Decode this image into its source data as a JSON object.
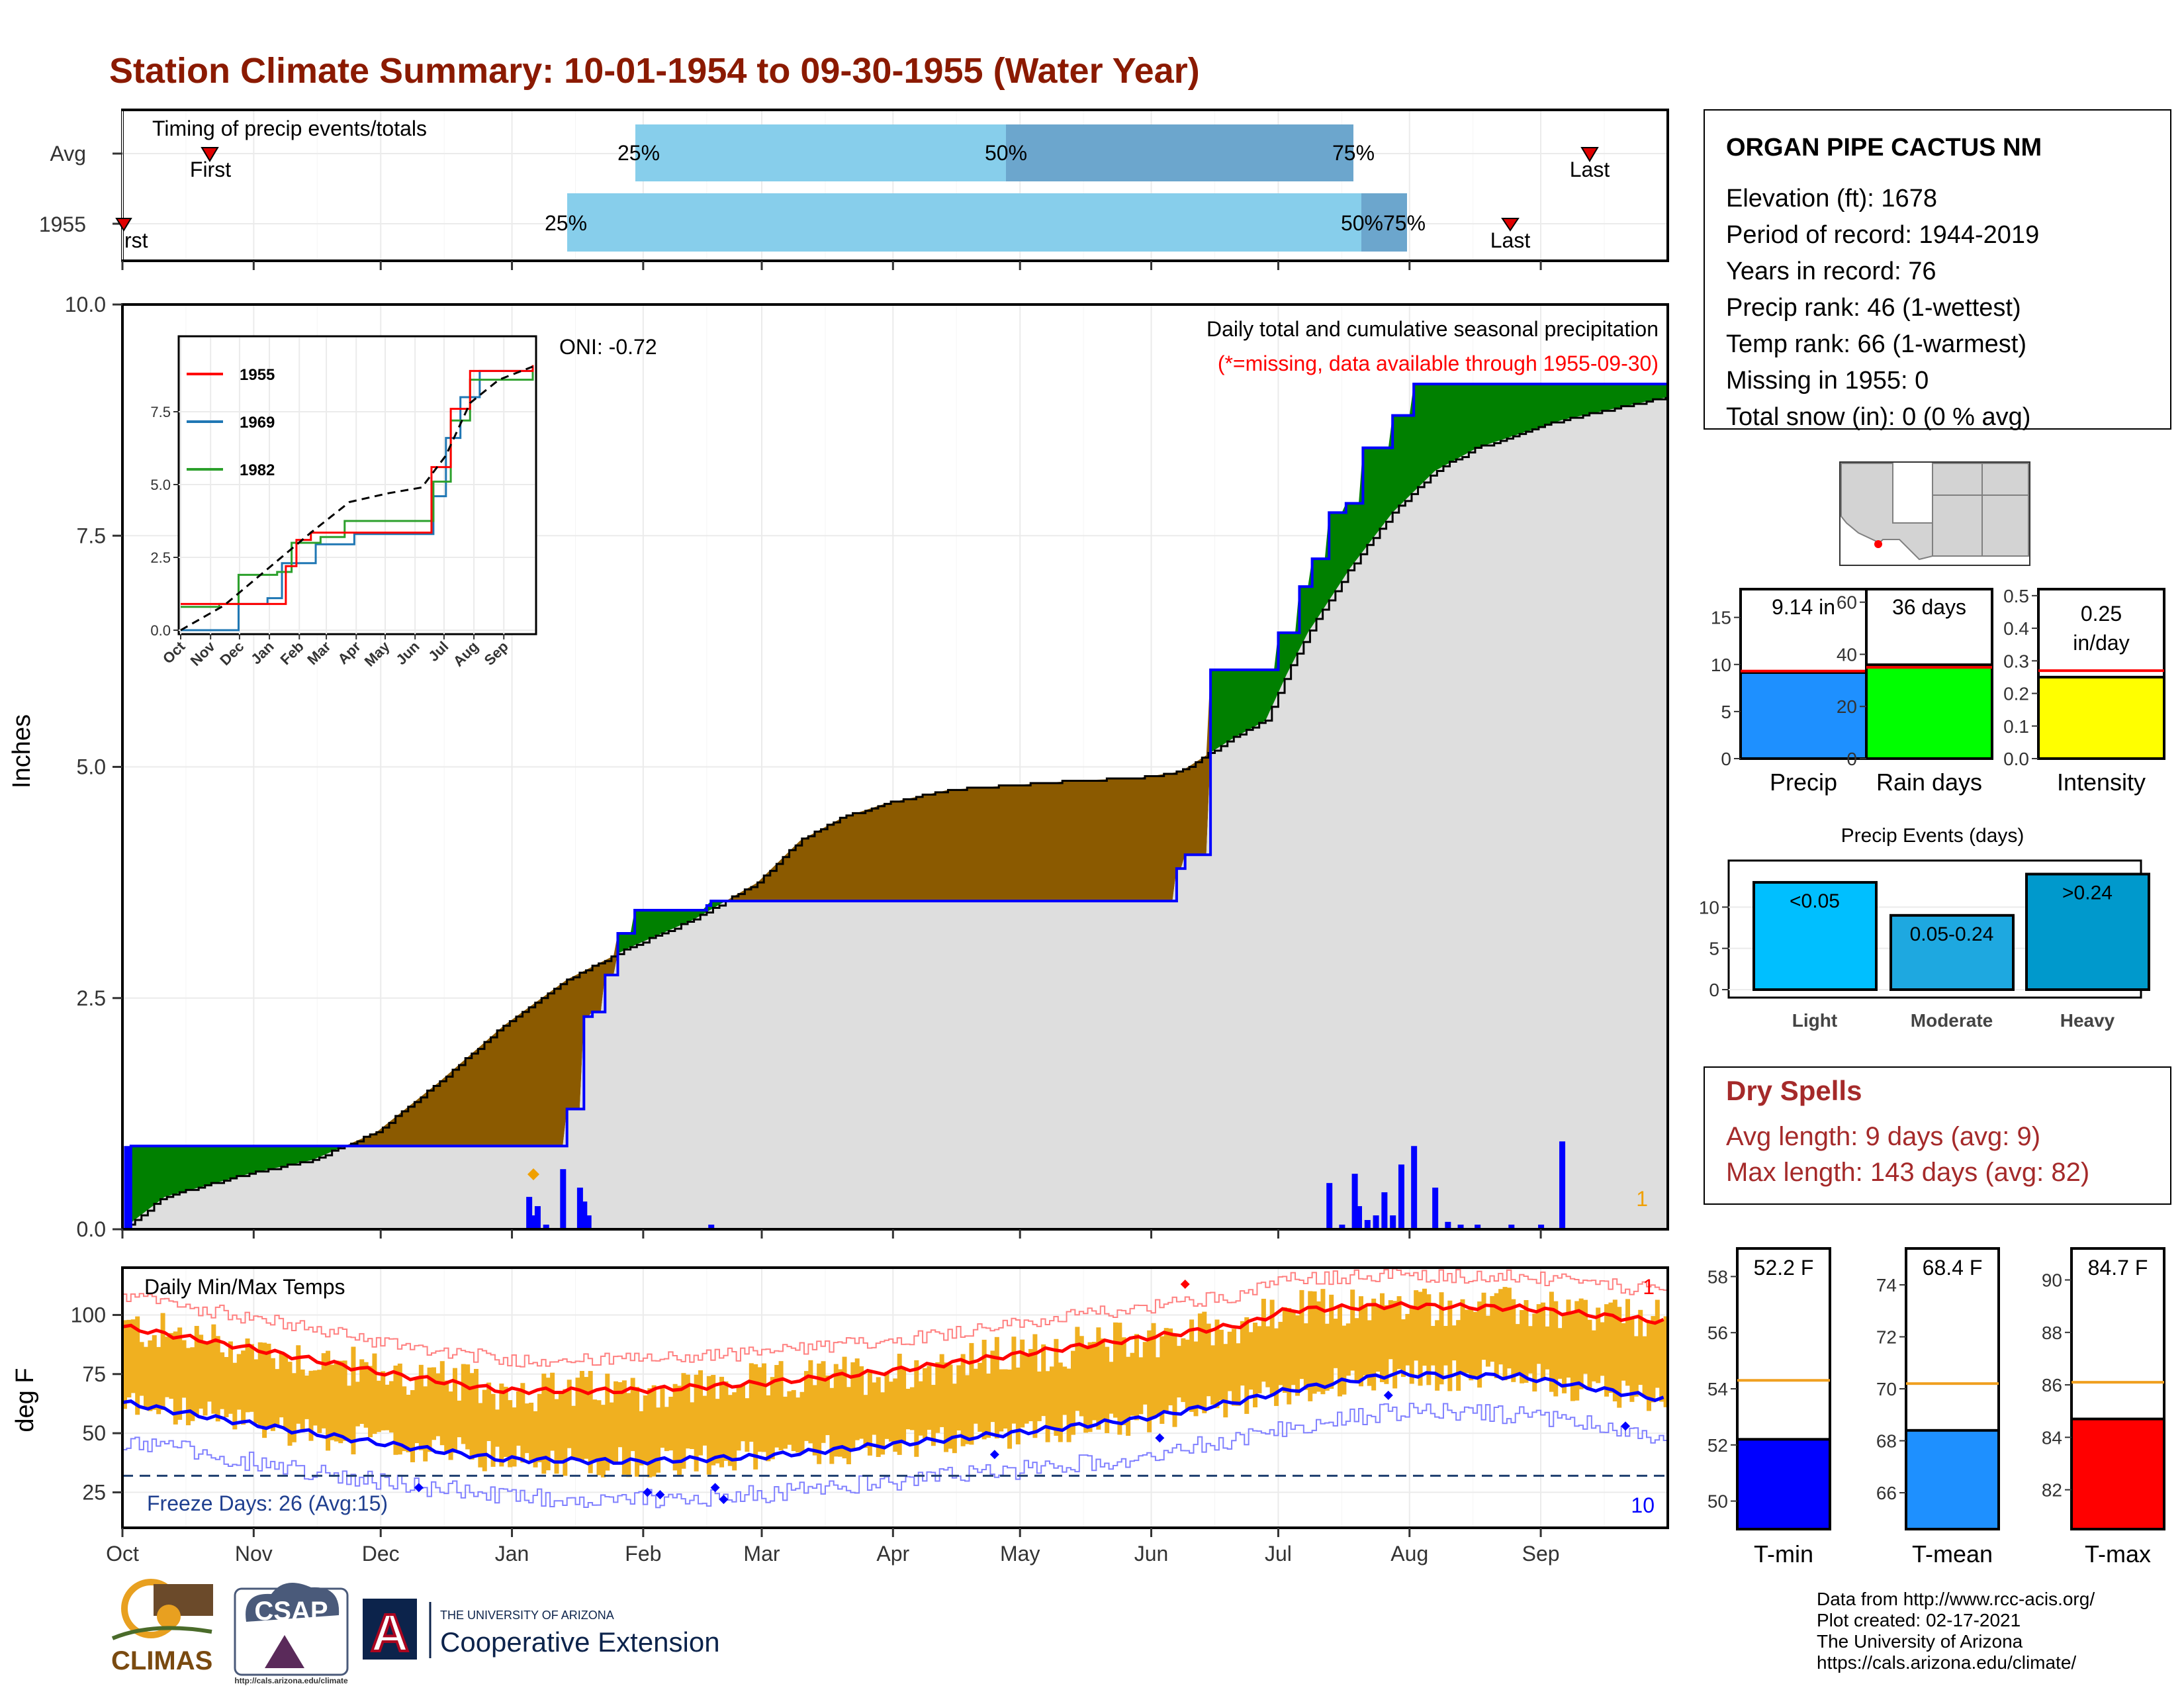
{
  "title": "Station Climate Summary: 10-01-1954 to 09-30-1955 (Water Year)",
  "colors": {
    "title": "#8B1A00",
    "dry": "#A52A2A",
    "red": "#FF0000",
    "blue": "#0000FF",
    "green": "#008000",
    "brown": "#8B5A00",
    "light_blue": "#87CEEB",
    "steel_blue": "#6CA6CD",
    "orange": "#F0B020"
  },
  "months": [
    "Oct",
    "Nov",
    "Dec",
    "Jan",
    "Feb",
    "Mar",
    "Apr",
    "May",
    "Jun",
    "Jul",
    "Aug",
    "Sep"
  ],
  "chart_data": [
    {
      "type": "bar",
      "name": "timing",
      "title": "Timing of precip events/totals",
      "rows": [
        {
          "label": "Avg",
          "first": "Nov 11",
          "p25": "Jan 16",
          "p50": "Apr 14",
          "p75": "Jul 14",
          "last": "Sep 11"
        },
        {
          "label": "1955",
          "first": "Oct 01",
          "p25": "Jan 04",
          "p50": "Jul 20",
          "p75": "Jul 31",
          "last": "Aug 25"
        }
      ],
      "labels": {
        "first": "First",
        "last": "Last",
        "first_1955": "rst",
        "p25": "25%",
        "p50": "50%",
        "p75": "75%",
        "p50_75": "50%75%"
      }
    },
    {
      "type": "area",
      "name": "precipitation",
      "ylabel": "Inches",
      "ylim": [
        0,
        10
      ],
      "yticks": [
        0.0,
        2.5,
        5.0,
        7.5,
        10.0
      ],
      "ytick_labels": [
        "0.0",
        "2.5",
        "5.0",
        "7.5",
        "10.0"
      ],
      "annotation_title": "Daily total and cumulative seasonal precipitation",
      "annotation_missing": "(*=missing, data available through 1955-09-30)",
      "oni": "ONI: -0.72",
      "count_label": "1",
      "cumulative_1955": [
        [
          0,
          0
        ],
        [
          2,
          0.9
        ],
        [
          96,
          0.9
        ],
        [
          97,
          0.9
        ],
        [
          104,
          0.9
        ],
        [
          105,
          1.3
        ],
        [
          108,
          1.3
        ],
        [
          109,
          2.3
        ],
        [
          110,
          2.3
        ],
        [
          111,
          2.35
        ],
        [
          113,
          2.35
        ],
        [
          114,
          2.75
        ],
        [
          116,
          2.75
        ],
        [
          117,
          3.2
        ],
        [
          121,
          3.45
        ],
        [
          133,
          3.45
        ],
        [
          134,
          3.45
        ],
        [
          138,
          3.5
        ],
        [
          139,
          3.55
        ],
        [
          140,
          3.55
        ],
        [
          248,
          3.55
        ],
        [
          249,
          3.9
        ],
        [
          251,
          4.05
        ],
        [
          256,
          4.05
        ],
        [
          257,
          6.05
        ],
        [
          273,
          6.45
        ],
        [
          278,
          6.95
        ],
        [
          281,
          7.25
        ],
        [
          285,
          7.75
        ],
        [
          289,
          7.85
        ],
        [
          291,
          7.85
        ],
        [
          293,
          8.45
        ],
        [
          298,
          8.45
        ],
        [
          300,
          8.8
        ],
        [
          305,
          9.14
        ],
        [
          365,
          9.14
        ]
      ],
      "cumulative_avg": [
        [
          0,
          0
        ],
        [
          10,
          0.35
        ],
        [
          30,
          0.6
        ],
        [
          45,
          0.75
        ],
        [
          60,
          1.05
        ],
        [
          75,
          1.6
        ],
        [
          90,
          2.2
        ],
        [
          105,
          2.7
        ],
        [
          120,
          3.05
        ],
        [
          135,
          3.35
        ],
        [
          150,
          3.75
        ],
        [
          160,
          4.2
        ],
        [
          170,
          4.45
        ],
        [
          180,
          4.6
        ],
        [
          195,
          4.75
        ],
        [
          210,
          4.8
        ],
        [
          225,
          4.85
        ],
        [
          240,
          4.88
        ],
        [
          250,
          4.95
        ],
        [
          262,
          5.3
        ],
        [
          270,
          5.5
        ],
        [
          275,
          6.0
        ],
        [
          280,
          6.45
        ],
        [
          290,
          7.15
        ],
        [
          300,
          7.75
        ],
        [
          310,
          8.2
        ],
        [
          320,
          8.45
        ],
        [
          330,
          8.6
        ],
        [
          340,
          8.75
        ],
        [
          350,
          8.85
        ],
        [
          365,
          9.0
        ]
      ],
      "daily_bars": [
        [
          1,
          0.9
        ],
        [
          96,
          0.35
        ],
        [
          97,
          0.15
        ],
        [
          98,
          0.25
        ],
        [
          100,
          0.05
        ],
        [
          104,
          0.65
        ],
        [
          108,
          0.45
        ],
        [
          109,
          0.3
        ],
        [
          110,
          0.15
        ],
        [
          139,
          0.05
        ],
        [
          285,
          0.5
        ],
        [
          288,
          0.05
        ],
        [
          291,
          0.6
        ],
        [
          292,
          0.25
        ],
        [
          294,
          0.1
        ],
        [
          296,
          0.15
        ],
        [
          298,
          0.4
        ],
        [
          300,
          0.15
        ],
        [
          302,
          0.7
        ],
        [
          305,
          0.9
        ],
        [
          310,
          0.45
        ],
        [
          313,
          0.08
        ],
        [
          316,
          0.05
        ],
        [
          320,
          0.05
        ],
        [
          328,
          0.05
        ],
        [
          335,
          0.05
        ],
        [
          340,
          0.95
        ]
      ],
      "inset": {
        "type": "line",
        "yticks": [
          0.0,
          2.5,
          5.0,
          7.5
        ],
        "ytick_labels": [
          "0.0",
          "2.5",
          "5.0",
          "7.5"
        ],
        "series": [
          {
            "name": "1955",
            "color": "#FF0000"
          },
          {
            "name": "1969",
            "color": "#1F77B4"
          },
          {
            "name": "1982",
            "color": "#2CA02C"
          }
        ]
      }
    },
    {
      "type": "bar",
      "name": "temperature",
      "title": "Daily Min/Max Temps",
      "ylabel": "deg F",
      "ylim": [
        10,
        120
      ],
      "yticks": [
        25,
        50,
        75,
        100
      ],
      "ytick_labels": [
        "25",
        "50",
        "75",
        "100"
      ],
      "freeze_label": "Freeze Days: 26 (Avg:15)",
      "freeze_line": 32,
      "count_top": "1",
      "count_bottom": "10",
      "avg_max": [
        [
          0,
          95
        ],
        [
          30,
          86
        ],
        [
          60,
          76
        ],
        [
          90,
          68
        ],
        [
          120,
          68
        ],
        [
          150,
          71
        ],
        [
          180,
          76
        ],
        [
          210,
          83
        ],
        [
          240,
          90
        ],
        [
          265,
          96
        ],
        [
          275,
          102
        ],
        [
          300,
          104
        ],
        [
          330,
          103
        ],
        [
          365,
          97
        ]
      ],
      "avg_min": [
        [
          0,
          63
        ],
        [
          30,
          54
        ],
        [
          60,
          46
        ],
        [
          90,
          39
        ],
        [
          120,
          38
        ],
        [
          150,
          40
        ],
        [
          180,
          45
        ],
        [
          210,
          50
        ],
        [
          240,
          56
        ],
        [
          265,
          64
        ],
        [
          275,
          68
        ],
        [
          300,
          75
        ],
        [
          330,
          74
        ],
        [
          365,
          64
        ]
      ]
    },
    {
      "type": "bar",
      "name": "summary-bars",
      "items": [
        {
          "label": "Precip",
          "value": 9.14,
          "text": "9.14 in",
          "avg": 9.3,
          "ylim": [
            0,
            18
          ],
          "yticks": [
            0,
            5,
            10,
            15
          ],
          "color": "#1E90FF"
        },
        {
          "label": "Rain days",
          "value": 36,
          "text": "36 days",
          "avg": 35,
          "ylim": [
            0,
            65
          ],
          "yticks": [
            0,
            20,
            40,
            60
          ],
          "color": "#00FF00"
        },
        {
          "label": "Intensity",
          "value": 0.25,
          "text": "0.25 in/day",
          "avg": 0.27,
          "ylim": [
            0,
            0.52
          ],
          "yticks": [
            0.0,
            0.1,
            0.2,
            0.3,
            0.4,
            0.5
          ],
          "color": "#FFFF00"
        }
      ]
    },
    {
      "type": "bar",
      "name": "precip-events",
      "title": "Precip Events (days)",
      "categories": [
        "Light",
        "Moderate",
        "Heavy"
      ],
      "bar_labels": [
        "<0.05",
        "0.05-0.24",
        ">0.24"
      ],
      "values": [
        13,
        9,
        14
      ],
      "ylim": [
        0,
        15
      ],
      "yticks": [
        0,
        5,
        10
      ],
      "colors": [
        "#00BFFF",
        "#1EA8E0",
        "#0099CC"
      ]
    },
    {
      "type": "bar",
      "name": "temp-summary",
      "items": [
        {
          "label": "T-min",
          "value": 52.2,
          "text": "52.2 F",
          "avg": 54.3,
          "ylim": [
            49,
            59
          ],
          "yticks": [
            50,
            52,
            54,
            56,
            58
          ],
          "color": "#0000FF"
        },
        {
          "label": "T-mean",
          "value": 68.4,
          "text": "68.4 F",
          "avg": 70.2,
          "ylim": [
            64.6,
            75.4
          ],
          "yticks": [
            66,
            68,
            70,
            72,
            74
          ],
          "color": "#1E90FF"
        },
        {
          "label": "T-max",
          "value": 84.7,
          "text": "84.7 F",
          "avg": 86.1,
          "ylim": [
            80.5,
            91.2
          ],
          "yticks": [
            82,
            84,
            86,
            88,
            90
          ],
          "color": "#FF0000"
        }
      ]
    }
  ],
  "station": {
    "name": "ORGAN PIPE CACTUS NM",
    "lines": [
      "Elevation (ft): 1678",
      "Period of record: 1944-2019",
      "Years in record: 76",
      "Precip rank: 46 (1-wettest)",
      "Temp rank: 66 (1-warmest)",
      "Missing in 1955: 0",
      "Total snow (in): 0 (0 % avg)"
    ]
  },
  "dry_spells": {
    "title": "Dry Spells",
    "lines": [
      "Avg length: 9 days (avg: 9)",
      "Max length: 143 days (avg: 82)"
    ]
  },
  "footer": {
    "lines": [
      "Data from http://www.rcc-acis.org/",
      "Plot created: 02-17-2021",
      "The University of Arizona",
      "https://cals.arizona.edu/climate/"
    ],
    "logos": {
      "climas": "CLIMAS",
      "csap": "CSAP",
      "csap_url": "http://cals.arizona.edu/climate",
      "ua_small": "THE UNIVERSITY OF ARIZONA",
      "ua_big": "Cooperative Extension",
      "ua_letter": "A"
    }
  }
}
